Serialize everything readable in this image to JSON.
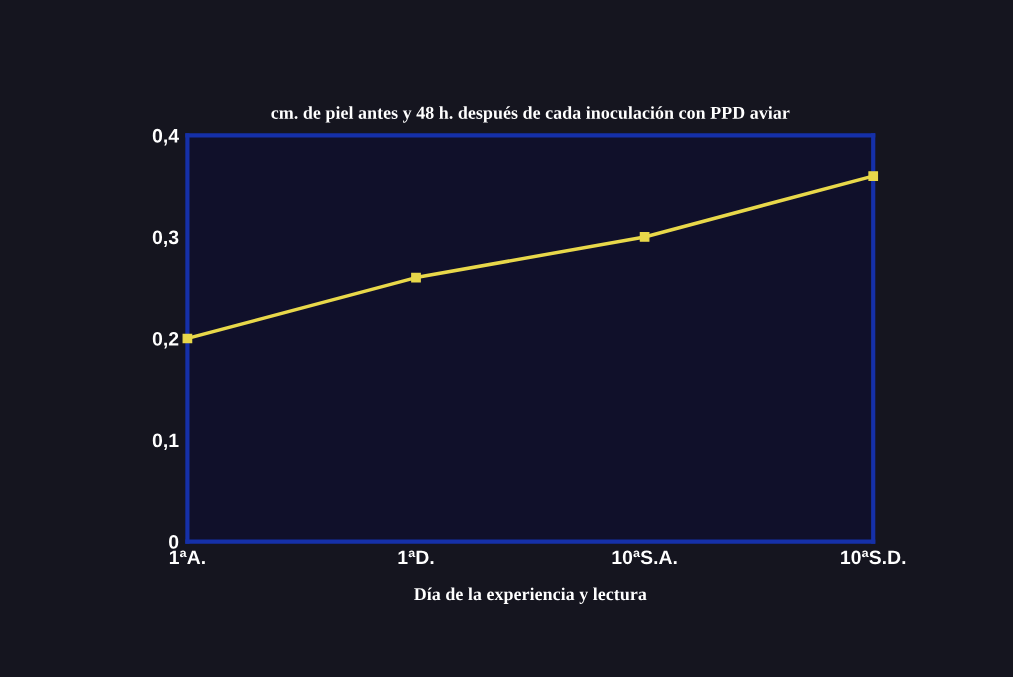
{
  "chart_data": {
    "type": "line",
    "title": "cm. de piel antes y 48 h. después de cada inoculación con PPD aviar",
    "xlabel": "Día de la experiencia y lectura",
    "categories": [
      "1ªA.",
      "1ªD.",
      "10ªS.A.",
      "10ªS.D."
    ],
    "series": [
      {
        "color": "#e8d84a",
        "values": [
          0.2,
          0.26,
          0.3,
          0.36
        ]
      }
    ],
    "ylim": [
      0,
      0.4
    ],
    "yticks": [
      {
        "value": 0,
        "label": "0"
      },
      {
        "value": 0.1,
        "label": "0,1"
      },
      {
        "value": 0.2,
        "label": "0,2"
      },
      {
        "value": 0.3,
        "label": "0,3"
      },
      {
        "value": 0.4,
        "label": "0,4"
      }
    ],
    "grid": false,
    "marker": "square",
    "line_style": "solid"
  }
}
